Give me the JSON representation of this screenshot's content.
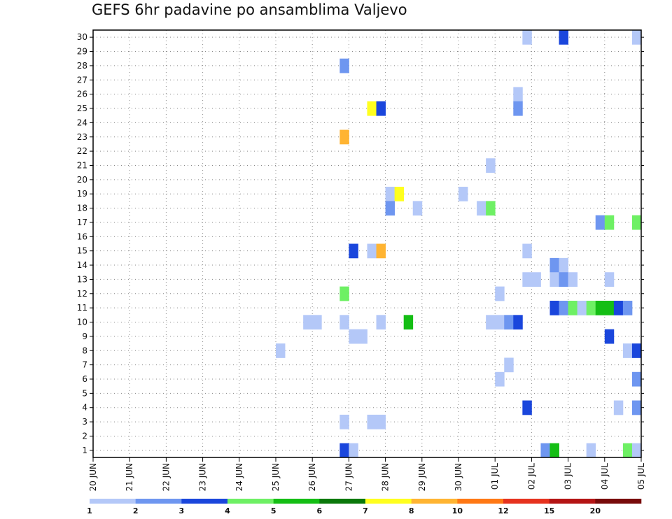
{
  "chart_data": {
    "type": "heatmap",
    "title": "GEFS 6hr padavine po ansamblima Valjevo",
    "xlabel": "",
    "ylabel": "",
    "x_tick_labels": [
      "20 JUN",
      "21 JUN",
      "22 JUN",
      "23 JUN",
      "24 JUN",
      "25 JUN",
      "26 JUN",
      "27 JUN",
      "28 JUN",
      "29 JUN",
      "30 JUN",
      "01 JUL",
      "02 JUL",
      "03 JUL",
      "04 JUL",
      "05 JUL"
    ],
    "y_tick_labels": [
      "1",
      "2",
      "3",
      "4",
      "5",
      "6",
      "7",
      "8",
      "9",
      "10",
      "11",
      "12",
      "13",
      "14",
      "15",
      "16",
      "17",
      "18",
      "19",
      "20",
      "21",
      "22",
      "23",
      "24",
      "25",
      "26",
      "27",
      "28",
      "29",
      "30"
    ],
    "x_step_hours": 6,
    "y_range": [
      1,
      30
    ],
    "grid": true,
    "colorbar": {
      "labels": [
        "1",
        "2",
        "3",
        "4",
        "5",
        "6",
        "7",
        "8",
        "10",
        "12",
        "15",
        "20"
      ],
      "colors": [
        "#b4c8f8",
        "#6e96f0",
        "#1a46dc",
        "#6ef064",
        "#14be14",
        "#0a780a",
        "#ffff1e",
        "#ffb432",
        "#ff7814",
        "#e6321e",
        "#b41414",
        "#780a0a"
      ]
    },
    "cells": [
      {
        "member": 30,
        "step": 48,
        "level": 1
      },
      {
        "member": 30,
        "step": 52,
        "level": 3
      },
      {
        "member": 30,
        "step": 60,
        "level": 1
      },
      {
        "member": 28,
        "step": 28,
        "level": 2
      },
      {
        "member": 26,
        "step": 47,
        "level": 1
      },
      {
        "member": 25,
        "step": 47,
        "level": 2
      },
      {
        "member": 25,
        "step": 31,
        "level": 7
      },
      {
        "member": 25,
        "step": 32,
        "level": 3
      },
      {
        "member": 23,
        "step": 28,
        "level": 8
      },
      {
        "member": 21,
        "step": 44,
        "level": 1
      },
      {
        "member": 19,
        "step": 33,
        "level": 1
      },
      {
        "member": 19,
        "step": 34,
        "level": 7
      },
      {
        "member": 19,
        "step": 41,
        "level": 1
      },
      {
        "member": 18,
        "step": 33,
        "level": 2
      },
      {
        "member": 18,
        "step": 36,
        "level": 1
      },
      {
        "member": 18,
        "step": 43,
        "level": 1
      },
      {
        "member": 18,
        "step": 44,
        "level": 4
      },
      {
        "member": 17,
        "step": 56,
        "level": 2
      },
      {
        "member": 17,
        "step": 57,
        "level": 4
      },
      {
        "member": 17,
        "step": 60,
        "level": 4
      },
      {
        "member": 15,
        "step": 29,
        "level": 3
      },
      {
        "member": 15,
        "step": 31,
        "level": 1
      },
      {
        "member": 15,
        "step": 32,
        "level": 8
      },
      {
        "member": 15,
        "step": 48,
        "level": 1
      },
      {
        "member": 14,
        "step": 51,
        "level": 2
      },
      {
        "member": 14,
        "step": 52,
        "level": 1
      },
      {
        "member": 13,
        "step": 48,
        "level": 1
      },
      {
        "member": 13,
        "step": 49,
        "level": 1
      },
      {
        "member": 13,
        "step": 51,
        "level": 1
      },
      {
        "member": 13,
        "step": 52,
        "level": 2
      },
      {
        "member": 13,
        "step": 53,
        "level": 1
      },
      {
        "member": 13,
        "step": 57,
        "level": 1
      },
      {
        "member": 12,
        "step": 28,
        "level": 4
      },
      {
        "member": 12,
        "step": 45,
        "level": 1
      },
      {
        "member": 11,
        "step": 51,
        "level": 3
      },
      {
        "member": 11,
        "step": 52,
        "level": 2
      },
      {
        "member": 11,
        "step": 53,
        "level": 4
      },
      {
        "member": 11,
        "step": 54,
        "level": 1
      },
      {
        "member": 11,
        "step": 55,
        "level": 4
      },
      {
        "member": 11,
        "step": 56,
        "level": 5
      },
      {
        "member": 11,
        "step": 57,
        "level": 5
      },
      {
        "member": 11,
        "step": 58,
        "level": 3
      },
      {
        "member": 11,
        "step": 59,
        "level": 2
      },
      {
        "member": 10,
        "step": 24,
        "level": 1
      },
      {
        "member": 10,
        "step": 25,
        "level": 1
      },
      {
        "member": 10,
        "step": 28,
        "level": 1
      },
      {
        "member": 10,
        "step": 32,
        "level": 1
      },
      {
        "member": 10,
        "step": 35,
        "level": 5
      },
      {
        "member": 10,
        "step": 44,
        "level": 1
      },
      {
        "member": 10,
        "step": 45,
        "level": 1
      },
      {
        "member": 10,
        "step": 46,
        "level": 2
      },
      {
        "member": 10,
        "step": 47,
        "level": 3
      },
      {
        "member": 9,
        "step": 29,
        "level": 1
      },
      {
        "member": 9,
        "step": 30,
        "level": 1
      },
      {
        "member": 9,
        "step": 57,
        "level": 3
      },
      {
        "member": 8,
        "step": 21,
        "level": 1
      },
      {
        "member": 8,
        "step": 59,
        "level": 1
      },
      {
        "member": 8,
        "step": 60,
        "level": 3
      },
      {
        "member": 7,
        "step": 46,
        "level": 1
      },
      {
        "member": 6,
        "step": 45,
        "level": 1
      },
      {
        "member": 6,
        "step": 60,
        "level": 2
      },
      {
        "member": 4,
        "step": 48,
        "level": 3
      },
      {
        "member": 4,
        "step": 58,
        "level": 1
      },
      {
        "member": 4,
        "step": 60,
        "level": 2
      },
      {
        "member": 3,
        "step": 28,
        "level": 1
      },
      {
        "member": 3,
        "step": 31,
        "level": 1
      },
      {
        "member": 3,
        "step": 32,
        "level": 1
      },
      {
        "member": 1,
        "step": 28,
        "level": 3
      },
      {
        "member": 1,
        "step": 29,
        "level": 1
      },
      {
        "member": 1,
        "step": 50,
        "level": 2
      },
      {
        "member": 1,
        "step": 51,
        "level": 5
      },
      {
        "member": 1,
        "step": 55,
        "level": 1
      },
      {
        "member": 1,
        "step": 59,
        "level": 4
      },
      {
        "member": 1,
        "step": 60,
        "level": 1
      }
    ]
  }
}
